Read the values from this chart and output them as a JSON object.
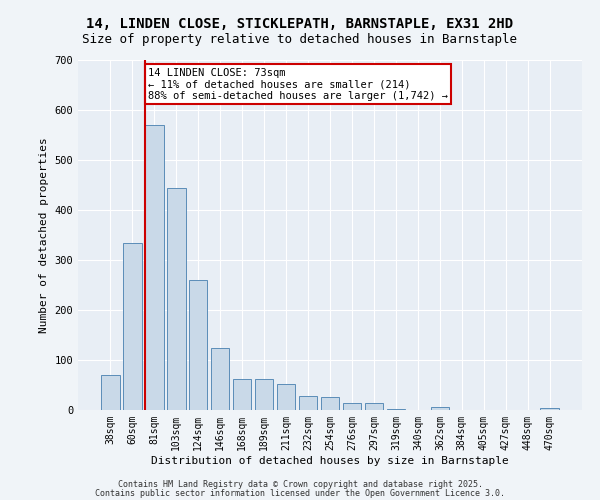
{
  "title1": "14, LINDEN CLOSE, STICKLEPATH, BARNSTAPLE, EX31 2HD",
  "title2": "Size of property relative to detached houses in Barnstaple",
  "xlabel": "Distribution of detached houses by size in Barnstaple",
  "ylabel": "Number of detached properties",
  "bar_labels": [
    "38sqm",
    "60sqm",
    "81sqm",
    "103sqm",
    "124sqm",
    "146sqm",
    "168sqm",
    "189sqm",
    "211sqm",
    "232sqm",
    "254sqm",
    "276sqm",
    "297sqm",
    "319sqm",
    "340sqm",
    "362sqm",
    "384sqm",
    "405sqm",
    "427sqm",
    "448sqm",
    "470sqm"
  ],
  "bar_values": [
    70,
    335,
    570,
    445,
    260,
    125,
    63,
    63,
    53,
    28,
    27,
    14,
    14,
    3,
    0,
    6,
    0,
    0,
    0,
    0,
    5
  ],
  "bar_color": "#c9d9e8",
  "bar_edge_color": "#5b8db8",
  "vline_color": "#cc0000",
  "annotation_text": "14 LINDEN CLOSE: 73sqm\n← 11% of detached houses are smaller (214)\n88% of semi-detached houses are larger (1,742) →",
  "annotation_box_color": "#ffffff",
  "annotation_box_edge": "#cc0000",
  "ylim": [
    0,
    700
  ],
  "yticks": [
    0,
    100,
    200,
    300,
    400,
    500,
    600,
    700
  ],
  "background_color": "#e8eef5",
  "grid_color": "#ffffff",
  "footer_line1": "Contains HM Land Registry data © Crown copyright and database right 2025.",
  "footer_line2": "Contains public sector information licensed under the Open Government Licence 3.0.",
  "title_fontsize": 10,
  "subtitle_fontsize": 9,
  "axis_label_fontsize": 8,
  "tick_fontsize": 7,
  "annotation_fontsize": 7.5,
  "footer_fontsize": 6
}
